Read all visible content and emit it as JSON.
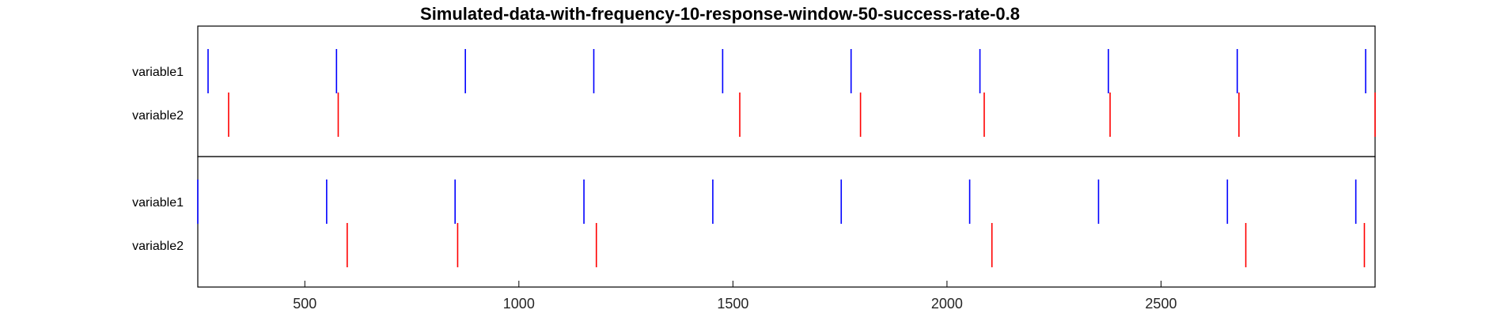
{
  "chart_data": {
    "type": "raster",
    "title": "Simulated-data-with-frequency-10-response-window-50-success-rate-0.8",
    "xlim": [
      250,
      3000
    ],
    "xticks": [
      500,
      1000,
      1500,
      2000,
      2500
    ],
    "row_labels": [
      "variable1",
      "variable2"
    ],
    "colors": {
      "variable1": "#0000ff",
      "variable2": "#ff0000",
      "axis": "#000000",
      "tick_text": "#262626"
    },
    "panels": [
      {
        "name": "panel-1",
        "series": [
          {
            "name": "variable1",
            "events": [
              274,
              574,
              875,
              1175,
              1476,
              1776,
              2077,
              2377,
              2678,
              2978
            ]
          },
          {
            "name": "variable2",
            "events": [
              322,
              578,
              1516,
              1798,
              2087,
              2381,
              2682,
              3000
            ]
          }
        ]
      },
      {
        "name": "panel-2",
        "series": [
          {
            "name": "variable1",
            "events": [
              250,
              551,
              851,
              1152,
              1453,
              1753,
              2053,
              2354,
              2655,
              2955
            ]
          },
          {
            "name": "variable2",
            "events": [
              599,
              857,
              1181,
              2105,
              2698,
              2975
            ]
          }
        ]
      }
    ]
  }
}
